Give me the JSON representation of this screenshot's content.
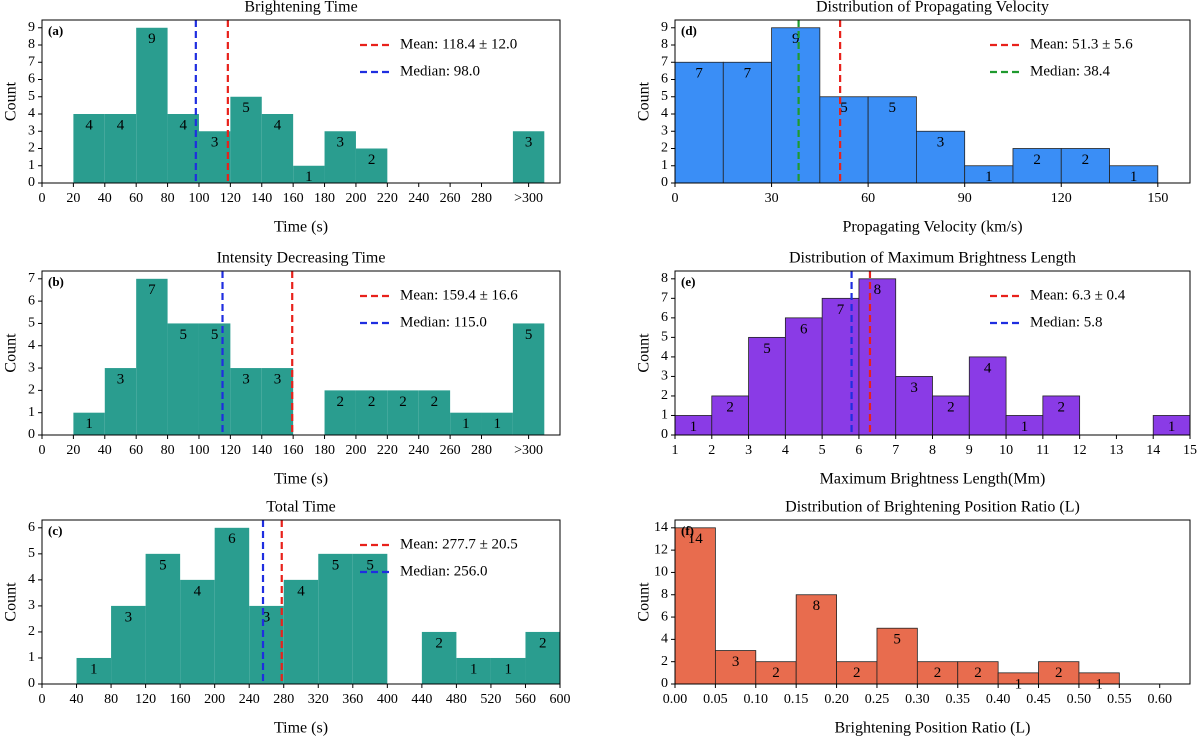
{
  "chart_data": [
    {
      "type": "histogram",
      "title": "Brightening Time",
      "panel_label": "(a)",
      "xlabel": "Time (s)",
      "ylabel": "Count",
      "bins": [
        20,
        40,
        60,
        80,
        100,
        120,
        140,
        160,
        180,
        200,
        220,
        240,
        260,
        280,
        300,
        320
      ],
      "counts": [
        4,
        4,
        9,
        4,
        3,
        5,
        4,
        1,
        3,
        2,
        0,
        0,
        0,
        0,
        3
      ],
      "color": "#2a9d8f",
      "xlim": [
        0,
        330
      ],
      "ylim": [
        0,
        9.45
      ],
      "xticks": [
        0,
        20,
        40,
        60,
        80,
        100,
        120,
        140,
        160,
        180,
        200,
        220,
        240,
        260,
        280,
        {
          "value": 310,
          "label": ">300"
        }
      ],
      "yticks": [
        0,
        1,
        2,
        3,
        4,
        5,
        6,
        7,
        8,
        9
      ],
      "vlines": [
        {
          "name": "Mean: 118.4 ± 12.0",
          "color": "#e8211b",
          "value": 118.4
        },
        {
          "name": "Median: 98.0",
          "color": "#1f2ee0",
          "value": 98.0
        }
      ],
      "legend": "upper right"
    },
    {
      "type": "histogram",
      "title": "Intensity Decreasing Time",
      "panel_label": "(b)",
      "xlabel": "Time (s)",
      "ylabel": "Count",
      "bins": [
        20,
        40,
        60,
        80,
        100,
        120,
        140,
        160,
        180,
        200,
        220,
        240,
        260,
        280,
        300,
        320
      ],
      "counts": [
        1,
        3,
        7,
        5,
        5,
        3,
        3,
        0,
        2,
        2,
        2,
        2,
        1,
        1,
        5
      ],
      "color": "#2a9d8f",
      "xlim": [
        0,
        330
      ],
      "ylim": [
        0,
        7.35
      ],
      "xticks": [
        0,
        20,
        40,
        60,
        80,
        100,
        120,
        140,
        160,
        180,
        200,
        220,
        240,
        260,
        280,
        {
          "value": 310,
          "label": ">300"
        }
      ],
      "yticks": [
        0,
        1,
        2,
        3,
        4,
        5,
        6,
        7
      ],
      "vlines": [
        {
          "name": "Mean: 159.4 ± 16.6",
          "color": "#e8211b",
          "value": 159.4
        },
        {
          "name": "Median: 115.0",
          "color": "#1f2ee0",
          "value": 115.0
        }
      ],
      "legend": "upper right"
    },
    {
      "type": "histogram",
      "title": "Total Time",
      "panel_label": "(c)",
      "xlabel": "Time (s)",
      "ylabel": "Count",
      "bins": [
        40,
        80,
        120,
        160,
        200,
        240,
        280,
        320,
        360,
        400,
        440,
        480,
        520,
        560,
        600
      ],
      "counts": [
        1,
        3,
        5,
        4,
        6,
        3,
        4,
        5,
        5,
        0,
        2,
        1,
        1,
        2
      ],
      "color": "#2a9d8f",
      "xlim": [
        0,
        600
      ],
      "ylim": [
        0,
        6.3
      ],
      "xticks": [
        0,
        40,
        80,
        120,
        160,
        200,
        240,
        280,
        320,
        360,
        400,
        440,
        480,
        520,
        560,
        600
      ],
      "yticks": [
        0,
        1,
        2,
        3,
        4,
        5,
        6
      ],
      "vlines": [
        {
          "name": "Mean: 277.7 ± 20.5",
          "color": "#e8211b",
          "value": 277.7
        },
        {
          "name": "Median: 256.0",
          "color": "#1f2ee0",
          "value": 256.0
        }
      ],
      "legend": "upper right"
    },
    {
      "type": "histogram",
      "title": "Distribution of Propagating Velocity",
      "panel_label": "(d)",
      "xlabel": "Propagating Velocity (km/s)",
      "ylabel": "Count",
      "bins": [
        0,
        15,
        30,
        45,
        60,
        75,
        90,
        105,
        120,
        135,
        150
      ],
      "counts": [
        7,
        7,
        9,
        5,
        5,
        3,
        1,
        2,
        2,
        1
      ],
      "color": "#3a8ef6",
      "edgecolor": "#222222",
      "xlim": [
        0,
        160
      ],
      "ylim": [
        0,
        9.45
      ],
      "xticks": [
        0,
        30,
        60,
        90,
        120,
        150
      ],
      "yticks": [
        0,
        1,
        2,
        3,
        4,
        5,
        6,
        7,
        8,
        9
      ],
      "vlines": [
        {
          "name": "Mean: 51.3 ± 5.6",
          "color": "#e8211b",
          "value": 51.3
        },
        {
          "name": "Median: 38.4",
          "color": "#1f9a2e",
          "value": 38.4
        }
      ],
      "legend": "upper right"
    },
    {
      "type": "histogram",
      "title": "Distribution of Maximum Brightness Length",
      "panel_label": "(e)",
      "xlabel": "Maximum Brightness Length(Mm)",
      "ylabel": "Count",
      "bins": [
        1,
        2,
        3,
        4,
        5,
        6,
        7,
        8,
        9,
        10,
        11,
        12,
        13,
        14,
        15
      ],
      "counts": [
        1,
        2,
        5,
        6,
        7,
        8,
        3,
        2,
        4,
        1,
        2,
        0,
        0,
        1
      ],
      "color": "#8a3be6",
      "edgecolor": "#222222",
      "xlim": [
        1,
        15
      ],
      "ylim": [
        0,
        8.4
      ],
      "xticks": [
        1,
        2,
        3,
        4,
        5,
        6,
        7,
        8,
        9,
        10,
        11,
        12,
        13,
        14,
        15
      ],
      "yticks": [
        0,
        1,
        2,
        3,
        4,
        5,
        6,
        7,
        8
      ],
      "vlines": [
        {
          "name": "Mean: 6.3 ± 0.4",
          "color": "#e8211b",
          "value": 6.3
        },
        {
          "name": "Median: 5.8",
          "color": "#1f2ee0",
          "value": 5.8
        }
      ],
      "legend": "upper right"
    },
    {
      "type": "histogram",
      "title": "Distribution of Brightening Position Ratio (L)",
      "panel_label": "(f)",
      "xlabel": "Brightening Position Ratio (L)",
      "ylabel": "Count",
      "bins": [
        0,
        0.05,
        0.1,
        0.15,
        0.2,
        0.25,
        0.3,
        0.35,
        0.4,
        0.45,
        0.5,
        0.55
      ],
      "counts": [
        14,
        3,
        2,
        8,
        2,
        5,
        2,
        2,
        1,
        2,
        1
      ],
      "color": "#e86c4e",
      "edgecolor": "#222222",
      "xlim": [
        0,
        0.6375
      ],
      "ylim": [
        0,
        14.7
      ],
      "xticks": [
        {
          "value": 0,
          "label": "0.00"
        },
        {
          "value": 0.05,
          "label": "0.05"
        },
        {
          "value": 0.1,
          "label": "0.10"
        },
        {
          "value": 0.15,
          "label": "0.15"
        },
        {
          "value": 0.2,
          "label": "0.20"
        },
        {
          "value": 0.25,
          "label": "0.25"
        },
        {
          "value": 0.3,
          "label": "0.30"
        },
        {
          "value": 0.35,
          "label": "0.35"
        },
        {
          "value": 0.4,
          "label": "0.40"
        },
        {
          "value": 0.45,
          "label": "0.45"
        },
        {
          "value": 0.5,
          "label": "0.50"
        },
        {
          "value": 0.55,
          "label": "0.55"
        },
        {
          "value": 0.6,
          "label": "0.60"
        }
      ],
      "yticks": [
        0,
        2,
        4,
        6,
        8,
        10,
        12,
        14
      ]
    }
  ]
}
